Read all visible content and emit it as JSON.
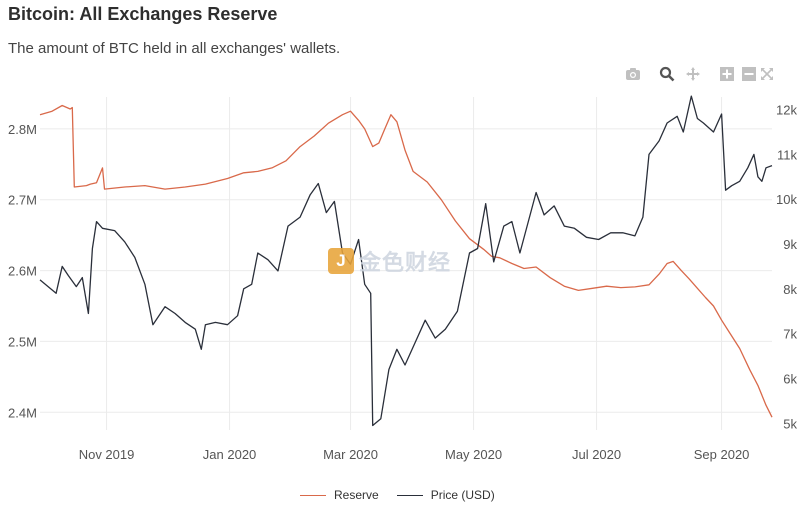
{
  "header": {
    "title": "Bitcoin: All Exchanges Reserve",
    "subtitle": "The amount of BTC held in all exchanges' wallets."
  },
  "toolbar": {
    "icons": [
      "camera-icon",
      "zoom-icon",
      "pan-icon",
      "zoom-in-icon",
      "zoom-out-icon",
      "autoscale-icon"
    ]
  },
  "watermark": {
    "logo_char": "J",
    "text": "金色财经"
  },
  "colors": {
    "reserve": "#d9694a",
    "price": "#2a2f3a",
    "grid": "#ebebeb"
  },
  "chart_data": {
    "type": "line",
    "title": "Bitcoin: All Exchanges Reserve",
    "subtitle": "The amount of BTC held in all exchanges' wallets.",
    "x_ticks": [
      "Nov 2019",
      "Jan 2020",
      "Mar 2020",
      "May 2020",
      "Jul 2020",
      "Sep 2020"
    ],
    "x_tick_dates": [
      "2019-11-01",
      "2020-01-01",
      "2020-03-01",
      "2020-05-01",
      "2020-07-01",
      "2020-09-01"
    ],
    "xlim": [
      "2019-09-29",
      "2020-09-26"
    ],
    "y_left": {
      "ticks": [
        "2.4M",
        "2.5M",
        "2.6M",
        "2.7M",
        "2.8M"
      ],
      "tick_values": [
        2400000,
        2500000,
        2600000,
        2700000,
        2800000
      ],
      "range": [
        2375000,
        2845000
      ]
    },
    "y_right": {
      "ticks": [
        "5k",
        "6k",
        "7k",
        "8k",
        "9k",
        "10k",
        "11k",
        "12k"
      ],
      "tick_values": [
        5000,
        6000,
        7000,
        8000,
        9000,
        10000,
        11000,
        12000
      ],
      "range": [
        4850,
        12280
      ]
    },
    "grid": true,
    "legend_position": "bottom-center",
    "series": [
      {
        "name": "Reserve",
        "axis": "left",
        "points": [
          [
            "2019-09-29",
            2820000
          ],
          [
            "2019-10-05",
            2825000
          ],
          [
            "2019-10-10",
            2833000
          ],
          [
            "2019-10-14",
            2828000
          ],
          [
            "2019-10-15",
            2830000
          ],
          [
            "2019-10-16",
            2718000
          ],
          [
            "2019-10-22",
            2720000
          ],
          [
            "2019-10-24",
            2722000
          ],
          [
            "2019-10-27",
            2724000
          ],
          [
            "2019-10-30",
            2745000
          ],
          [
            "2019-10-31",
            2715000
          ],
          [
            "2019-11-10",
            2718000
          ],
          [
            "2019-11-20",
            2720000
          ],
          [
            "2019-11-30",
            2715000
          ],
          [
            "2019-12-10",
            2718000
          ],
          [
            "2019-12-20",
            2722000
          ],
          [
            "2019-12-31",
            2730000
          ],
          [
            "2020-01-08",
            2738000
          ],
          [
            "2020-01-15",
            2740000
          ],
          [
            "2020-01-22",
            2745000
          ],
          [
            "2020-01-29",
            2755000
          ],
          [
            "2020-02-05",
            2775000
          ],
          [
            "2020-02-12",
            2790000
          ],
          [
            "2020-02-19",
            2808000
          ],
          [
            "2020-02-26",
            2820000
          ],
          [
            "2020-03-01",
            2825000
          ],
          [
            "2020-03-05",
            2812000
          ],
          [
            "2020-03-08",
            2800000
          ],
          [
            "2020-03-12",
            2775000
          ],
          [
            "2020-03-15",
            2780000
          ],
          [
            "2020-03-18",
            2800000
          ],
          [
            "2020-03-21",
            2820000
          ],
          [
            "2020-03-24",
            2810000
          ],
          [
            "2020-03-28",
            2770000
          ],
          [
            "2020-04-01",
            2740000
          ],
          [
            "2020-04-08",
            2725000
          ],
          [
            "2020-04-15",
            2700000
          ],
          [
            "2020-04-22",
            2670000
          ],
          [
            "2020-04-29",
            2645000
          ],
          [
            "2020-05-06",
            2630000
          ],
          [
            "2020-05-10",
            2620000
          ],
          [
            "2020-05-14",
            2618000
          ],
          [
            "2020-05-20",
            2610000
          ],
          [
            "2020-05-26",
            2603000
          ],
          [
            "2020-06-01",
            2605000
          ],
          [
            "2020-06-08",
            2590000
          ],
          [
            "2020-06-15",
            2578000
          ],
          [
            "2020-06-22",
            2572000
          ],
          [
            "2020-06-29",
            2575000
          ],
          [
            "2020-07-06",
            2578000
          ],
          [
            "2020-07-13",
            2576000
          ],
          [
            "2020-07-20",
            2577000
          ],
          [
            "2020-07-27",
            2580000
          ],
          [
            "2020-08-01",
            2595000
          ],
          [
            "2020-08-05",
            2610000
          ],
          [
            "2020-08-08",
            2613000
          ],
          [
            "2020-08-12",
            2600000
          ],
          [
            "2020-08-16",
            2588000
          ],
          [
            "2020-08-20",
            2575000
          ],
          [
            "2020-08-24",
            2562000
          ],
          [
            "2020-08-28",
            2550000
          ],
          [
            "2020-09-01",
            2530000
          ],
          [
            "2020-09-05",
            2512000
          ],
          [
            "2020-09-10",
            2490000
          ],
          [
            "2020-09-15",
            2460000
          ],
          [
            "2020-09-19",
            2438000
          ],
          [
            "2020-09-23",
            2410000
          ],
          [
            "2020-09-26",
            2393000
          ]
        ]
      },
      {
        "name": "Price (USD)",
        "axis": "right",
        "points": [
          [
            "2019-09-29",
            8200
          ],
          [
            "2019-10-03",
            8050
          ],
          [
            "2019-10-07",
            7900
          ],
          [
            "2019-10-10",
            8500
          ],
          [
            "2019-10-13",
            8300
          ],
          [
            "2019-10-17",
            8050
          ],
          [
            "2019-10-20",
            8250
          ],
          [
            "2019-10-23",
            7450
          ],
          [
            "2019-10-25",
            8900
          ],
          [
            "2019-10-27",
            9500
          ],
          [
            "2019-10-30",
            9350
          ],
          [
            "2019-11-05",
            9300
          ],
          [
            "2019-11-10",
            9050
          ],
          [
            "2019-11-15",
            8700
          ],
          [
            "2019-11-20",
            8100
          ],
          [
            "2019-11-24",
            7200
          ],
          [
            "2019-11-30",
            7600
          ],
          [
            "2019-12-05",
            7450
          ],
          [
            "2019-12-10",
            7250
          ],
          [
            "2019-12-15",
            7100
          ],
          [
            "2019-12-18",
            6650
          ],
          [
            "2019-12-20",
            7200
          ],
          [
            "2019-12-25",
            7250
          ],
          [
            "2019-12-31",
            7200
          ],
          [
            "2020-01-05",
            7400
          ],
          [
            "2020-01-08",
            8000
          ],
          [
            "2020-01-12",
            8100
          ],
          [
            "2020-01-15",
            8800
          ],
          [
            "2020-01-20",
            8650
          ],
          [
            "2020-01-25",
            8400
          ],
          [
            "2020-01-30",
            9400
          ],
          [
            "2020-02-05",
            9600
          ],
          [
            "2020-02-10",
            10100
          ],
          [
            "2020-02-14",
            10350
          ],
          [
            "2020-02-18",
            9700
          ],
          [
            "2020-02-22",
            9950
          ],
          [
            "2020-02-26",
            8800
          ],
          [
            "2020-03-01",
            8550
          ],
          [
            "2020-03-05",
            9100
          ],
          [
            "2020-03-08",
            8100
          ],
          [
            "2020-03-11",
            7900
          ],
          [
            "2020-03-12",
            4950
          ],
          [
            "2020-03-16",
            5100
          ],
          [
            "2020-03-20",
            6200
          ],
          [
            "2020-03-24",
            6650
          ],
          [
            "2020-03-28",
            6300
          ],
          [
            "2020-04-02",
            6800
          ],
          [
            "2020-04-07",
            7300
          ],
          [
            "2020-04-12",
            6900
          ],
          [
            "2020-04-17",
            7100
          ],
          [
            "2020-04-23",
            7500
          ],
          [
            "2020-04-29",
            8800
          ],
          [
            "2020-05-03",
            8900
          ],
          [
            "2020-05-07",
            9900
          ],
          [
            "2020-05-11",
            8600
          ],
          [
            "2020-05-16",
            9400
          ],
          [
            "2020-05-20",
            9500
          ],
          [
            "2020-05-24",
            8800
          ],
          [
            "2020-06-01",
            10150
          ],
          [
            "2020-06-05",
            9650
          ],
          [
            "2020-06-10",
            9850
          ],
          [
            "2020-06-15",
            9400
          ],
          [
            "2020-06-20",
            9350
          ],
          [
            "2020-06-26",
            9150
          ],
          [
            "2020-07-02",
            9100
          ],
          [
            "2020-07-08",
            9250
          ],
          [
            "2020-07-14",
            9250
          ],
          [
            "2020-07-20",
            9180
          ],
          [
            "2020-07-24",
            9600
          ],
          [
            "2020-07-27",
            11000
          ],
          [
            "2020-08-01",
            11300
          ],
          [
            "2020-08-05",
            11700
          ],
          [
            "2020-08-10",
            11850
          ],
          [
            "2020-08-13",
            11500
          ],
          [
            "2020-08-17",
            12300
          ],
          [
            "2020-08-20",
            11800
          ],
          [
            "2020-08-23",
            11700
          ],
          [
            "2020-08-28",
            11500
          ],
          [
            "2020-09-01",
            11900
          ],
          [
            "2020-09-03",
            10200
          ],
          [
            "2020-09-06",
            10300
          ],
          [
            "2020-09-10",
            10400
          ],
          [
            "2020-09-14",
            10700
          ],
          [
            "2020-09-17",
            11000
          ],
          [
            "2020-09-19",
            10500
          ],
          [
            "2020-09-21",
            10400
          ],
          [
            "2020-09-23",
            10700
          ],
          [
            "2020-09-26",
            10750
          ]
        ]
      }
    ]
  }
}
